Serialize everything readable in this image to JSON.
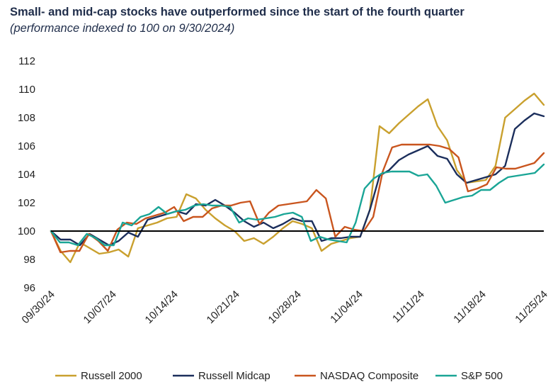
{
  "title": "Small- and mid-cap stocks have outperformed since the start of the fourth quarter",
  "subtitle": "(performance  indexed to 100 on 9/30/2024)",
  "chart_data": {
    "type": "line",
    "ylim": [
      96,
      112
    ],
    "yticks": [
      96,
      98,
      100,
      102,
      104,
      106,
      108,
      110,
      112
    ],
    "xticks": [
      {
        "label": "09/30/24",
        "index": 0
      },
      {
        "label": "10/07/24",
        "index": 5
      },
      {
        "label": "10/14/24",
        "index": 10
      },
      {
        "label": "10/21/24",
        "index": 15
      },
      {
        "label": "10/28/24",
        "index": 20
      },
      {
        "label": "11/04/24",
        "index": 25
      },
      {
        "label": "11/11/24",
        "index": 30
      },
      {
        "label": "11/18/24",
        "index": 35
      },
      {
        "label": "11/25/24",
        "index": 40
      }
    ],
    "reference_line": 100,
    "grid": false,
    "legend_position": "bottom",
    "series": [
      {
        "name": "Russell 2000",
        "color": "#c9a02e",
        "values": [
          100,
          98.6,
          97.8,
          99.2,
          98.8,
          98.4,
          98.5,
          98.7,
          98.2,
          100.2,
          100.4,
          100.6,
          100.9,
          101.0,
          102.6,
          102.3,
          101.5,
          100.9,
          100.4,
          100.0,
          99.3,
          99.5,
          99.1,
          99.6,
          100.2,
          100.7,
          100.5,
          100.2,
          98.6,
          99.1,
          99.3,
          99.5,
          99.6,
          101.5,
          107.4,
          106.9,
          107.6,
          108.2,
          108.8,
          109.3,
          107.4,
          106.4,
          104.3,
          103.4,
          103.5,
          103.6,
          104.6,
          108.0,
          108.6,
          109.2,
          109.7,
          108.9
        ]
      },
      {
        "name": "Russell Midcap",
        "color": "#1b2e5c",
        "values": [
          100,
          99.4,
          99.4,
          99.0,
          99.8,
          99.4,
          99.0,
          99.3,
          99.9,
          99.6,
          100.8,
          101.0,
          101.2,
          101.4,
          101.2,
          101.9,
          101.8,
          102.2,
          101.8,
          101.3,
          100.7,
          100.3,
          100.6,
          100.2,
          100.5,
          100.9,
          100.7,
          100.7,
          99.3,
          99.5,
          99.5,
          99.6,
          99.6,
          101.5,
          103.9,
          104.3,
          105.0,
          105.4,
          105.7,
          106.0,
          105.3,
          105.1,
          104.0,
          103.4,
          103.6,
          103.8,
          104.0,
          104.6,
          107.2,
          107.8,
          108.3,
          108.1
        ]
      },
      {
        "name": "NASDAQ Composite",
        "color": "#c9551e",
        "values": [
          100,
          98.5,
          98.6,
          98.6,
          99.8,
          99.3,
          98.6,
          100.1,
          100.6,
          100.5,
          100.9,
          101.1,
          101.3,
          101.7,
          100.7,
          101.0,
          101.0,
          101.6,
          101.8,
          101.8,
          102.0,
          102.1,
          100.5,
          101.3,
          101.8,
          101.9,
          102.0,
          102.1,
          102.9,
          102.3,
          99.6,
          100.3,
          100.1,
          100.0,
          101.0,
          104.2,
          105.9,
          106.1,
          106.1,
          106.1,
          106.1,
          106.0,
          105.8,
          105.2,
          102.8,
          103.0,
          103.3,
          104.5,
          104.4,
          104.4,
          104.6,
          104.8,
          105.5
        ]
      },
      {
        "name": "S&P 500",
        "color": "#1aa596",
        "values": [
          100,
          99.2,
          99.2,
          99.0,
          99.8,
          99.5,
          99.0,
          99.0,
          100.6,
          100.4,
          101.0,
          101.2,
          101.7,
          101.2,
          101.4,
          101.5,
          101.8,
          101.9,
          101.8,
          101.8,
          101.7,
          100.6,
          100.9,
          100.8,
          100.9,
          101.0,
          101.2,
          101.3,
          101.0,
          99.3,
          99.6,
          99.4,
          99.3,
          99.2,
          100.6,
          103.0,
          103.7,
          104.1,
          104.2,
          104.2,
          104.2,
          103.9,
          104.0,
          103.2,
          102.0,
          102.2,
          102.4,
          102.5,
          102.9,
          102.9,
          103.4,
          103.8,
          103.9,
          104.0,
          104.1,
          104.7
        ]
      }
    ]
  }
}
